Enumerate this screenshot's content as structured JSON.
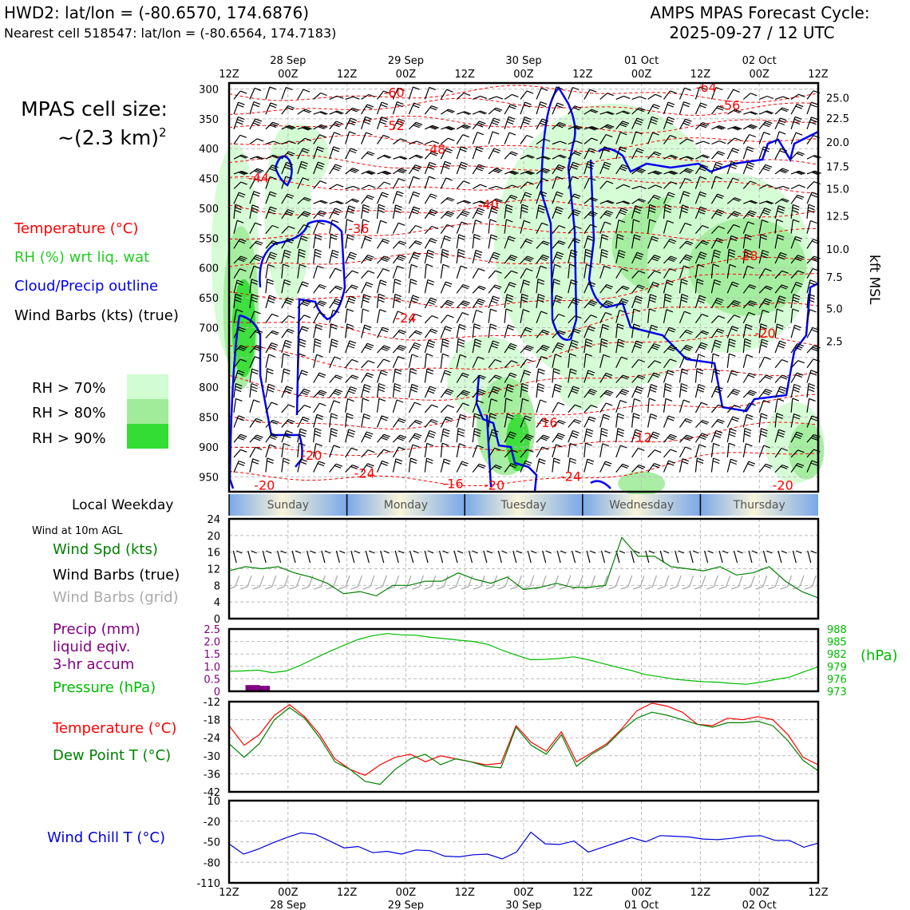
{
  "header": {
    "title_left": "HWD2: lat/lon = (-80.6570, 174.6876)",
    "subtitle_left": "Nearest cell 518547: lat/lon = (-80.6564, 174.7183)",
    "title_right_1": "AMPS MPAS Forecast Cycle:",
    "title_right_2": "2025-09-27 / 12 UTC"
  },
  "time_axis": {
    "ticks": [
      "12Z",
      "00Z",
      "12Z",
      "00Z",
      "12Z",
      "00Z",
      "12Z",
      "00Z",
      "12Z",
      "00Z",
      "12Z"
    ],
    "dates": [
      {
        "tick": 1,
        "label": "28 Sep"
      },
      {
        "tick": 3,
        "label": "29 Sep"
      },
      {
        "tick": 5,
        "label": "30 Sep"
      },
      {
        "tick": 7,
        "label": "01 Oct"
      },
      {
        "tick": 9,
        "label": "02 Oct"
      }
    ]
  },
  "legend": {
    "cell_size_1": "MPAS cell size:",
    "cell_size_2": "~(2.3 km)",
    "cell_size_sup": "2",
    "temperature": "Temperature (°C)",
    "rh": "RH (%) wrt liq. wat",
    "cloud": "Cloud/Precip outline",
    "wind": "Wind Barbs (kts) (true)",
    "rh70": "RH > 70%",
    "rh80": "RH > 80%",
    "rh90": "RH > 90%",
    "local_weekday": "Local Weekday",
    "wind_10m": "Wind at 10m AGL",
    "wind_spd": "Wind Spd (kts)",
    "wind_barbs_true": "Wind Barbs (true)",
    "wind_barbs_grid": "Wind Barbs (grid)",
    "precip_1": "Precip (mm)",
    "precip_2": "liquid eqiv.",
    "precip_3": "3-hr accum",
    "pressure": "Pressure (hPa)",
    "pressure_unit": "(hPa)",
    "temp2": "Temperature (°C)",
    "dewpoint": "Dew Point T (°C)",
    "windchill": "Wind Chill T (°C)",
    "kft": "kft MSL"
  },
  "colors": {
    "temperature": "#ff0000",
    "rh_text": "#22cc22",
    "cloud": "#0000ee",
    "wind": "#000000",
    "rh70": "#d2fcd2",
    "rh80": "#a0ec9a",
    "rh90": "#33dd33",
    "wind_spd": "#008000",
    "precip": "#800080",
    "pressure": "#00bb00",
    "dewpoint": "#008000",
    "windchill": "#0000dd",
    "grid_barb": "#aaaaaa",
    "weekday_blue": "#7aa8e8",
    "weekday_yellow": "#f8f4d8"
  },
  "weekdays": [
    "Sunday",
    "Monday",
    "Tuesday",
    "Wednesday",
    "Thursday"
  ],
  "chart_data": [
    {
      "type": "heatmap",
      "name": "time-height cross section",
      "y_axis_left": {
        "label": "pressure (hPa)",
        "ticks": [
          300,
          350,
          400,
          450,
          500,
          550,
          600,
          650,
          700,
          750,
          800,
          850,
          900,
          950
        ],
        "ylim": [
          975,
          290
        ]
      },
      "y_axis_right": {
        "label": "kft MSL",
        "ticks": [
          {
            "p": 315,
            "label": "25.0"
          },
          {
            "p": 349,
            "label": "22.5"
          },
          {
            "p": 389,
            "label": "20.0"
          },
          {
            "p": 430,
            "label": "17.5"
          },
          {
            "p": 467,
            "label": "15.0"
          },
          {
            "p": 513,
            "label": "12.5"
          },
          {
            "p": 568,
            "label": "10.0"
          },
          {
            "p": 615,
            "label": "7.5"
          },
          {
            "p": 668,
            "label": "5.0"
          },
          {
            "p": 723,
            "label": "2.5"
          }
        ]
      },
      "temperature_labels": [
        {
          "t": 0.81,
          "p": 298,
          "label": "-64"
        },
        {
          "t": 0.28,
          "p": 307,
          "label": "-60"
        },
        {
          "t": 0.85,
          "p": 328,
          "label": "-56"
        },
        {
          "t": 0.28,
          "p": 362,
          "label": "-52"
        },
        {
          "t": 0.35,
          "p": 402,
          "label": "-48"
        },
        {
          "t": 0.05,
          "p": 450,
          "label": "-44"
        },
        {
          "t": 0.44,
          "p": 495,
          "label": "-40"
        },
        {
          "t": 0.22,
          "p": 535,
          "label": "-36"
        },
        {
          "t": 0.88,
          "p": 580,
          "label": "-28"
        },
        {
          "t": 0.3,
          "p": 685,
          "label": "-24"
        },
        {
          "t": 0.91,
          "p": 710,
          "label": "-20"
        },
        {
          "t": 0.54,
          "p": 860,
          "label": "-16"
        },
        {
          "t": 0.7,
          "p": 885,
          "label": "-12"
        },
        {
          "t": 0.14,
          "p": 915,
          "label": "-20"
        },
        {
          "t": 0.23,
          "p": 945,
          "label": "-24"
        },
        {
          "t": 0.58,
          "p": 950,
          "label": "-24"
        },
        {
          "t": 0.38,
          "p": 962,
          "label": "-16"
        },
        {
          "t": 0.94,
          "p": 965,
          "label": "-20"
        },
        {
          "t": 0.06,
          "p": 965,
          "label": "-20"
        },
        {
          "t": 0.45,
          "p": 965,
          "label": "-20"
        }
      ]
    },
    {
      "type": "line",
      "name": "wind speed",
      "series": [
        {
          "name": "Wind Spd (kts)",
          "values": [
            11.5,
            12.5,
            12,
            12.5,
            11,
            10,
            8.5,
            6,
            6.5,
            5.5,
            8,
            8,
            9,
            9,
            11,
            9.5,
            8.5,
            10,
            7,
            7.5,
            8.5,
            7.5,
            7.5,
            8,
            19.5,
            15,
            15,
            12.5,
            12,
            11.5,
            12.5,
            10.5,
            11,
            12.5,
            9,
            6.5,
            5
          ]
        }
      ],
      "ylim": [
        0,
        24
      ],
      "yticks": [
        "0",
        "4",
        "8",
        "12",
        "16",
        "20",
        "24"
      ]
    },
    {
      "type": "line",
      "name": "precip and pressure",
      "precip_mm": [
        {
          "t": 0.04,
          "value": 0.25
        },
        {
          "t": 0.057,
          "value": 0.22
        },
        {
          "t": 0.46,
          "value": 0.03
        }
      ],
      "precip_ylim": [
        0,
        2.5
      ],
      "precip_yticks": [
        "0",
        "0.5",
        "1.0",
        "1.5",
        "2.0",
        "2.5"
      ],
      "pressure_series": [
        {
          "name": "Pressure (hPa)",
          "values": [
            977.8,
            977.9,
            978.1,
            977.5,
            977.9,
            979.3,
            981.0,
            982.6,
            984.1,
            985.5,
            986.4,
            986.9,
            986.6,
            986.5,
            986.0,
            985.7,
            985.3,
            985.0,
            984.3,
            982.9,
            981.7,
            980.6,
            980.7,
            980.9,
            981.3,
            980.6,
            979.7,
            978.8,
            978.0,
            977.0,
            976.5,
            975.9,
            975.6,
            975.3,
            975.2,
            974.9,
            974.7,
            975.2,
            975.8,
            976.4,
            977.7,
            978.9
          ]
        }
      ],
      "pressure_ylim": [
        973,
        988
      ],
      "pressure_yticks": [
        "973",
        "976",
        "979",
        "982",
        "985",
        "988"
      ]
    },
    {
      "type": "line",
      "name": "temperature and dew point",
      "series": [
        {
          "name": "Temperature (°C)",
          "values": [
            -20,
            -26.5,
            -23,
            -16.5,
            -13,
            -17,
            -23,
            -31,
            -34.5,
            -36.5,
            -33,
            -30.5,
            -29.5,
            -32,
            -30,
            -31,
            -32,
            -33,
            -32.5,
            -20,
            -25.5,
            -28.5,
            -22,
            -32,
            -29,
            -26,
            -21,
            -15,
            -12.5,
            -13.5,
            -15.5,
            -19.5,
            -20,
            -17.5,
            -18,
            -17,
            -18,
            -23,
            -30.5,
            -33
          ]
        },
        {
          "name": "Dew Point T (°C)",
          "values": [
            -26,
            -30.5,
            -26,
            -18,
            -14,
            -17.5,
            -24,
            -32,
            -34.5,
            -38.5,
            -39.5,
            -34.5,
            -31,
            -29.5,
            -33,
            -31,
            -32,
            -33.5,
            -34,
            -20.5,
            -26.5,
            -29.5,
            -23,
            -33.5,
            -29.5,
            -26.5,
            -21.5,
            -17.5,
            -15.5,
            -16.5,
            -18,
            -19.5,
            -20.5,
            -19,
            -19,
            -18.5,
            -20,
            -25,
            -31.5,
            -35
          ]
        }
      ],
      "ylim": [
        -42,
        -12
      ],
      "yticks": [
        "-42",
        "-36",
        "-30",
        "-24",
        "-18",
        "-12"
      ]
    },
    {
      "type": "line",
      "name": "wind chill",
      "series": [
        {
          "name": "Wind Chill T (°C)",
          "values": [
            -53,
            -68,
            -61,
            -52,
            -44,
            -37,
            -39,
            -49,
            -59,
            -57,
            -66,
            -64,
            -68,
            -62,
            -63,
            -71,
            -72,
            -69,
            -68,
            -75,
            -65,
            -36,
            -53,
            -54,
            -49,
            -65,
            -58,
            -51,
            -44,
            -50,
            -41,
            -42,
            -43,
            -46,
            -47,
            -45,
            -42,
            -41,
            -48,
            -48,
            -58,
            -52
          ]
        }
      ],
      "ylim": [
        -110,
        10
      ],
      "yticks": [
        "-110",
        "-80",
        "-50",
        "-20",
        "10"
      ]
    }
  ]
}
